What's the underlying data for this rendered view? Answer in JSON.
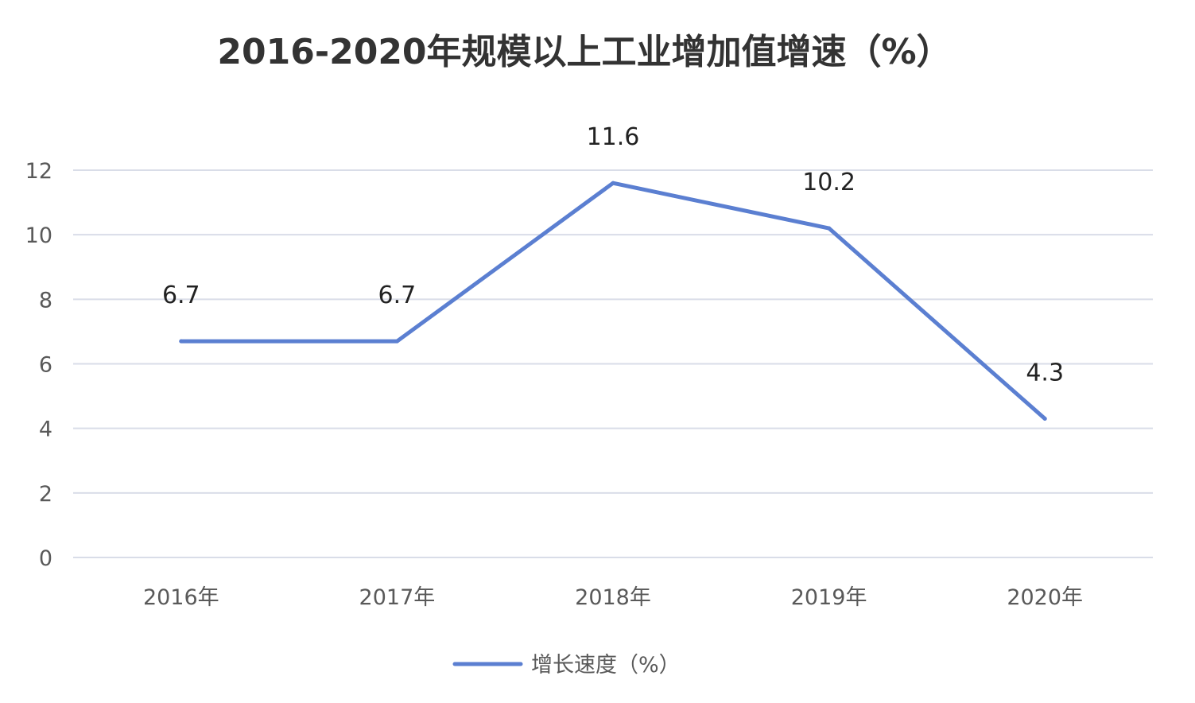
{
  "chart_data": {
    "type": "line",
    "title": "2016-2020年规模以上工业增加值增速（%）",
    "categories": [
      "2016年",
      "2017年",
      "2018年",
      "2019年",
      "2020年"
    ],
    "series": [
      {
        "name": "增长速度（%）",
        "values": [
          6.7,
          6.7,
          11.6,
          10.2,
          4.3
        ],
        "data_labels": [
          "6.7",
          "6.7",
          "11.6",
          "10.2",
          "4.3"
        ]
      }
    ],
    "ylim": [
      0,
      12
    ],
    "yticks": [
      "0",
      "2",
      "4",
      "6",
      "8",
      "10",
      "12"
    ],
    "grid": true,
    "legend": "bottom-center",
    "colors": {
      "line": "#5b7fd1",
      "grid": "#d9dde8"
    }
  }
}
